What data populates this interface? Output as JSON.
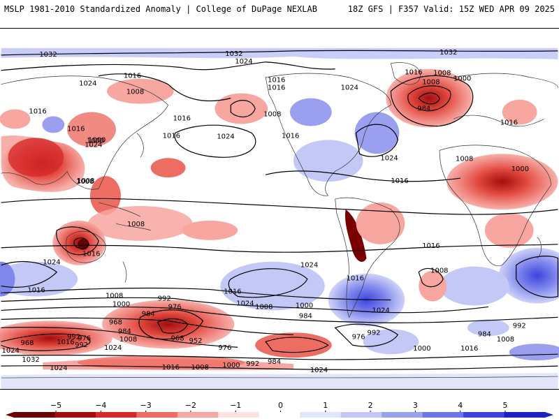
{
  "header": {
    "title_left": "MSLP 1981-2010 Standardized Anomaly | College of DuPage NEXLAB",
    "title_right": "18Z GFS | F357 Valid: 15Z WED APR 09 2025"
  },
  "colors": {
    "ocean": "#ffffff",
    "land_outline": "#333333",
    "contour": "#000000",
    "neg_strong": "#7a0000",
    "neg_mid": "#d9342b",
    "neg_light": "#f7a6a0",
    "pos_light": "#c9cdf7",
    "pos_mid": "#7f86ec",
    "pos_strong": "#1f2bd6"
  },
  "colorbar": {
    "ticks": [
      "−5",
      "−4",
      "−3",
      "−2",
      "−1",
      "0",
      "1",
      "2",
      "3",
      "4",
      "5"
    ],
    "colors": [
      "#6b0000",
      "#a30d0d",
      "#d62a2a",
      "#ee6d63",
      "#f7a6a0",
      "#fde3df",
      "#ffffff",
      "#e3e5fb",
      "#c4c8f6",
      "#9aa0ef",
      "#6d74e6",
      "#3c45dc",
      "#1a22c4"
    ]
  },
  "isobar_labels": [
    {
      "text": "1032"
    },
    {
      "text": "1032"
    },
    {
      "text": "1032"
    },
    {
      "text": "1024"
    },
    {
      "text": "1024"
    },
    {
      "text": "1024"
    },
    {
      "text": "1016"
    },
    {
      "text": "1016"
    },
    {
      "text": "1016"
    },
    {
      "text": "1016"
    },
    {
      "text": "1008"
    },
    {
      "text": "1008"
    },
    {
      "text": "1024"
    },
    {
      "text": "1000"
    },
    {
      "text": "984"
    },
    {
      "text": "1008"
    },
    {
      "text": "1016"
    },
    {
      "text": "1000"
    },
    {
      "text": "1016"
    },
    {
      "text": "1024"
    },
    {
      "text": "1016"
    },
    {
      "text": "1008"
    },
    {
      "text": "1000"
    },
    {
      "text": "1008"
    },
    {
      "text": "1016"
    },
    {
      "text": "1008"
    },
    {
      "text": "1008"
    },
    {
      "text": "1016"
    },
    {
      "text": "1016"
    },
    {
      "text": "1024"
    },
    {
      "text": "1016"
    },
    {
      "text": "1000"
    },
    {
      "text": "1008"
    },
    {
      "text": "1024"
    },
    {
      "text": "1016"
    },
    {
      "text": "1016"
    },
    {
      "text": "1024"
    },
    {
      "text": "1016"
    },
    {
      "text": "1008"
    },
    {
      "text": "992"
    },
    {
      "text": "976"
    },
    {
      "text": "1000"
    },
    {
      "text": "984"
    },
    {
      "text": "968"
    },
    {
      "text": "984"
    },
    {
      "text": "992"
    },
    {
      "text": "976"
    },
    {
      "text": "952"
    },
    {
      "text": "968"
    },
    {
      "text": "1016"
    },
    {
      "text": "1024"
    },
    {
      "text": "1008"
    },
    {
      "text": "1024"
    },
    {
      "text": "992"
    },
    {
      "text": "968"
    },
    {
      "text": "976"
    },
    {
      "text": "1032"
    },
    {
      "text": "1024"
    },
    {
      "text": "1016"
    },
    {
      "text": "1008"
    },
    {
      "text": "1000"
    },
    {
      "text": "992"
    },
    {
      "text": "984"
    },
    {
      "text": "1024"
    },
    {
      "text": "1000"
    },
    {
      "text": "976"
    },
    {
      "text": "1016"
    },
    {
      "text": "992"
    },
    {
      "text": "984"
    },
    {
      "text": "1016"
    },
    {
      "text": "1024"
    },
    {
      "text": "1008"
    },
    {
      "text": "1000"
    },
    {
      "text": "1024"
    },
    {
      "text": "992"
    },
    {
      "text": "1016"
    },
    {
      "text": "1008"
    },
    {
      "text": "984"
    },
    {
      "text": "1008"
    }
  ]
}
